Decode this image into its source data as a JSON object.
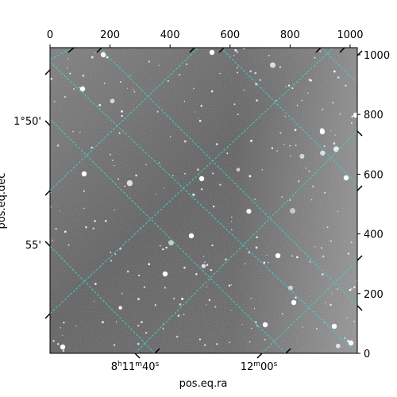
{
  "chart_data": {
    "type": "image",
    "xlabel": "pos.eq.ra",
    "ylabel": "pos.eq.dec",
    "pixel_x": {
      "ticks": [
        0,
        200,
        400,
        600,
        800,
        1000
      ],
      "tick_labels": [
        "0",
        "200",
        "400",
        "600",
        "800",
        "1000"
      ],
      "lim": [
        0,
        1024
      ]
    },
    "pixel_y": {
      "ticks": [
        0,
        200,
        400,
        600,
        800,
        1000
      ],
      "tick_labels": [
        "0",
        "200",
        "400",
        "600",
        "800",
        "1000"
      ],
      "lim": [
        0,
        1024
      ]
    },
    "ra_ticks": {
      "labels": [
        {
          "pre": "8",
          "h": "h",
          "mid": "11",
          "m": "m",
          "post": "40",
          "s": "s"
        },
        {
          "pre": "",
          "h": "",
          "mid": "12",
          "m": "m",
          "post": "00",
          "s": "s"
        }
      ]
    },
    "dec_ticks": {
      "labels": [
        "1°50'",
        "55'"
      ]
    },
    "grid": true,
    "grid_color": "#40d0d0",
    "colormap": "gray"
  }
}
